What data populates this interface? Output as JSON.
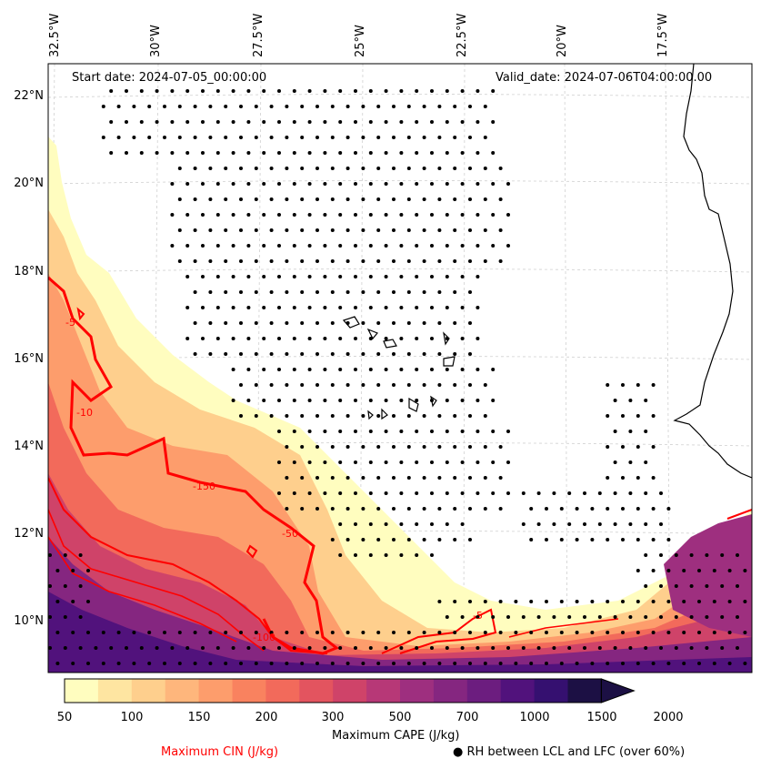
{
  "map": {
    "start_date": "Start date: 2024-07-05_00:00:00",
    "valid_date": "Valid_date: 2024-07-06T04:00:00.00",
    "lon_labels": [
      "32.5°W",
      "30°W",
      "27.5°W",
      "25°W",
      "22.5°W",
      "20°W",
      "17.5°W"
    ],
    "lat_labels": [
      "22°N",
      "20°N",
      "18°N",
      "16°N",
      "14°N",
      "12°N",
      "10°N"
    ],
    "contour_labels": [
      "-150",
      "-50",
      "-100",
      "-5",
      "-10",
      "-5"
    ],
    "colors": {
      "cin_contour": "#ff0000",
      "coast": "#000000",
      "gridline": "#cccccc"
    }
  },
  "colorbar": {
    "title": "Maximum CAPE (J/kg)",
    "ticks": [
      "50",
      "100",
      "150",
      "200",
      "300",
      "500",
      "700",
      "1000",
      "1500",
      "2000"
    ],
    "colors": [
      "#fffdbf",
      "#fee5a1",
      "#fecf8d",
      "#feb67c",
      "#fd9d6c",
      "#f9825f",
      "#f26a5b",
      "#e3545f",
      "#cf4369",
      "#b73877",
      "#9e2f7f",
      "#852680",
      "#6c1d7f",
      "#51127c",
      "#351070",
      "#1c1044"
    ]
  },
  "legend": {
    "cin_label": "Maximum CIN (J/kg)",
    "rh_label": "● RH between LCL and LFC (over 60%)"
  }
}
